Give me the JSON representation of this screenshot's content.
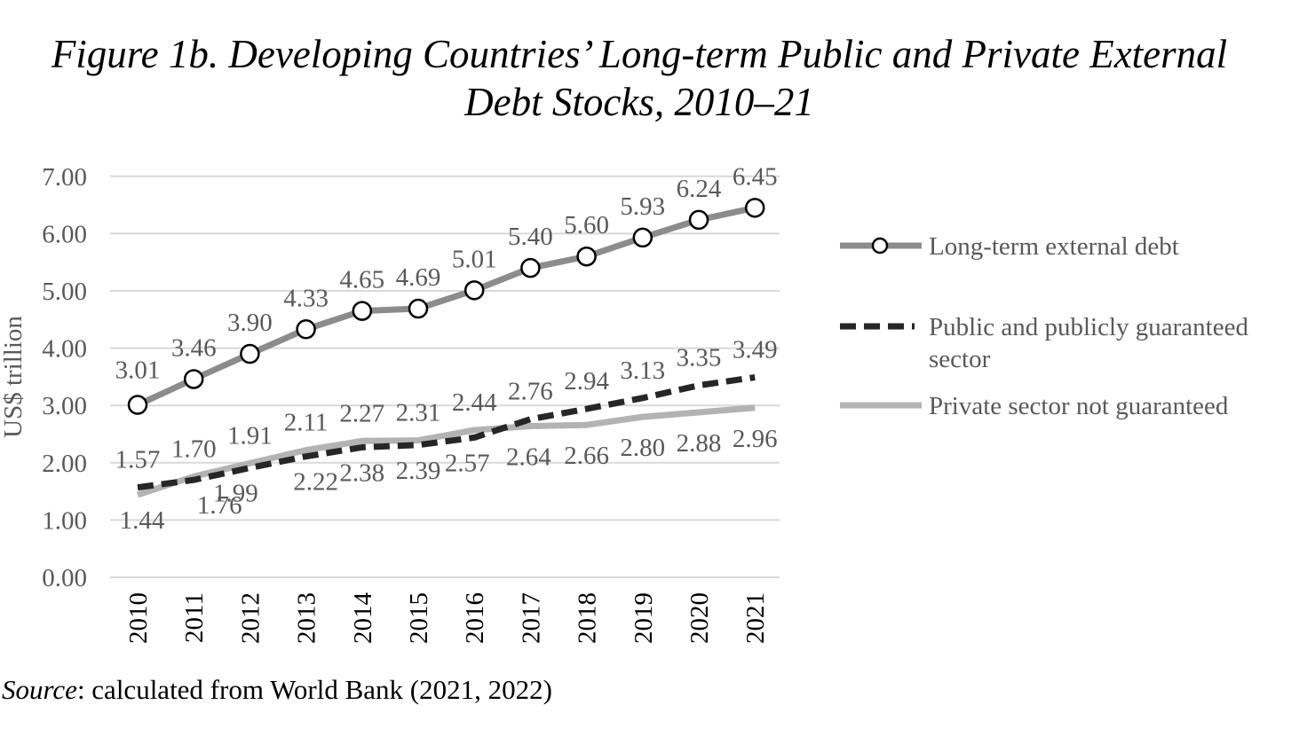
{
  "title_lines": [
    "Figure 1b. Developing Countries’ Long-term Public and Private External",
    "Debt Stocks, 2010–21"
  ],
  "source": {
    "label": "Source",
    "text": ": calculated from World Bank (2021, 2022)"
  },
  "chart_data": {
    "type": "line",
    "title": "Figure 1b. Developing Countries’ Long-term Public and Private External Debt Stocks, 2010–21",
    "xlabel": "",
    "ylabel": "US$ trillion",
    "ylim": [
      0,
      7
    ],
    "yticks": [
      "0.00",
      "1.00",
      "2.00",
      "3.00",
      "4.00",
      "5.00",
      "6.00",
      "7.00"
    ],
    "categories": [
      "2010",
      "2011",
      "2012",
      "2013",
      "2014",
      "2015",
      "2016",
      "2017",
      "2018",
      "2019",
      "2020",
      "2021"
    ],
    "grid": true,
    "legend_position": "right",
    "series": [
      {
        "name": "Long-term external debt",
        "values": [
          3.01,
          3.46,
          3.9,
          4.33,
          4.65,
          4.69,
          5.01,
          5.4,
          5.6,
          5.93,
          6.24,
          6.45
        ],
        "labels": [
          "3.01",
          "3.46",
          "3.90",
          "4.33",
          "4.65",
          "4.69",
          "5.01",
          "5.40",
          "5.60",
          "5.93",
          "6.24",
          "6.45"
        ],
        "color": "#8c8c8c",
        "style": "solid-markers"
      },
      {
        "name": "Public and publicly guaranteed sector",
        "values": [
          1.57,
          1.7,
          1.91,
          2.11,
          2.27,
          2.31,
          2.44,
          2.76,
          2.94,
          3.13,
          3.35,
          3.49
        ],
        "labels": [
          "1.57",
          "1.70",
          "1.91",
          "2.11",
          "2.27",
          "2.31",
          "2.44",
          "2.76",
          "2.94",
          "3.13",
          "3.35",
          "3.49"
        ],
        "color": "#262626",
        "style": "dashed"
      },
      {
        "name": "Private sector not guaranteed",
        "values": [
          1.44,
          1.76,
          1.99,
          2.22,
          2.38,
          2.39,
          2.57,
          2.64,
          2.66,
          2.8,
          2.88,
          2.96
        ],
        "labels": [
          "1.44",
          "1.76",
          "1.99",
          "2.22",
          "2.38",
          "2.39",
          "2.57",
          "2.64",
          "2.66",
          "2.80",
          "2.88",
          "2.96"
        ],
        "color": "#b3b3b3",
        "style": "solid"
      }
    ]
  }
}
